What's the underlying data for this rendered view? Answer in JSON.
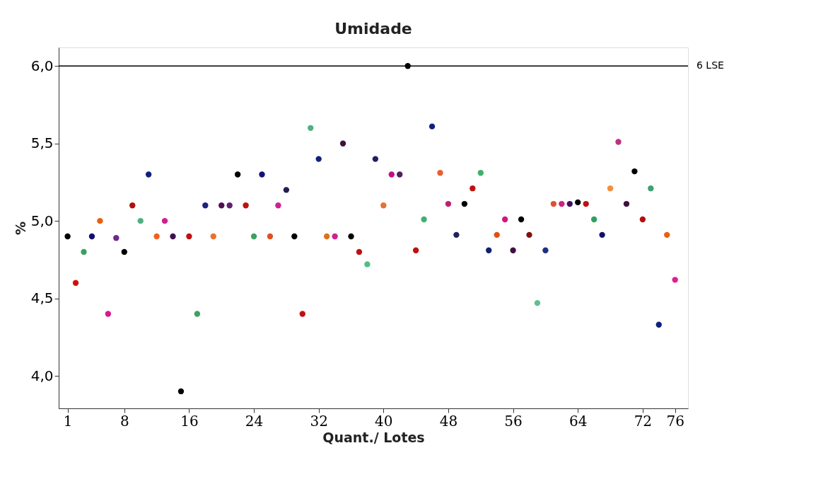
{
  "chart_data": {
    "type": "scatter",
    "title": "Umidade",
    "xlabel": "Quant./ Lotes",
    "ylabel": "%",
    "x": [
      1,
      2,
      3,
      4,
      5,
      6,
      7,
      8,
      9,
      10,
      11,
      12,
      13,
      14,
      15,
      16,
      17,
      18,
      19,
      20,
      21,
      22,
      23,
      24,
      25,
      26,
      27,
      28,
      29,
      30,
      31,
      32,
      33,
      34,
      35,
      36,
      37,
      38,
      39,
      40,
      41,
      42,
      43,
      44,
      45,
      46,
      47,
      48,
      49,
      50,
      51,
      52,
      53,
      54,
      55,
      56,
      57,
      58,
      59,
      60,
      61,
      62,
      63,
      64,
      65,
      66,
      67,
      68,
      69,
      70,
      71,
      72,
      73,
      74,
      75,
      76
    ],
    "series": [
      {
        "values": [
          4.9,
          4.6,
          4.8,
          4.9,
          5.0,
          4.4,
          4.89,
          4.8,
          5.1,
          5.0,
          5.3,
          4.9,
          5.0,
          4.9,
          3.9,
          4.9,
          4.4,
          5.1,
          4.9,
          5.1,
          5.1,
          5.3,
          5.1,
          4.9,
          5.3,
          4.9,
          5.1,
          5.2,
          4.9,
          4.4,
          5.6,
          5.4,
          4.9,
          4.9,
          5.5,
          4.9,
          4.8,
          4.72,
          5.4,
          5.1,
          5.3,
          5.3,
          6.0,
          4.81,
          5.01,
          5.61,
          5.31,
          5.11,
          4.91,
          5.11,
          5.21,
          5.31,
          4.81,
          4.91,
          5.01,
          4.81,
          5.01,
          4.91,
          4.47,
          4.81,
          5.11,
          5.11,
          5.11,
          5.12,
          5.11,
          5.01,
          4.91,
          5.21,
          5.51,
          5.11,
          5.32,
          5.01,
          5.21,
          4.33,
          4.91,
          4.62
        ],
        "colors": [
          "#000000",
          "#d01010",
          "#3aa060",
          "#101070",
          "#e86010",
          "#d81890",
          "#702890",
          "#000000",
          "#b01010",
          "#50b080",
          "#102080",
          "#f06020",
          "#d02090",
          "#401050",
          "#000000",
          "#c01010",
          "#40a060",
          "#202080",
          "#e87030",
          "#501050",
          "#602070",
          "#000000",
          "#c01010",
          "#40a060",
          "#101080",
          "#e05020",
          "#d02090",
          "#202050",
          "#000000",
          "#c01010",
          "#50b080",
          "#102080",
          "#e07020",
          "#d02090",
          "#401040",
          "#000000",
          "#c01010",
          "#50c080",
          "#202060",
          "#e87030",
          "#c01080",
          "#502060",
          "#000000",
          "#c01010",
          "#40b070",
          "#102080",
          "#e86030",
          "#c02070",
          "#202060",
          "#000000",
          "#c01010",
          "#40b070",
          "#102070",
          "#e05010",
          "#d01880",
          "#401040",
          "#000000",
          "#801010",
          "#60c090",
          "#203080",
          "#e05030",
          "#d02080",
          "#401060",
          "#000000",
          "#c01010",
          "#30a060",
          "#101070",
          "#f09040",
          "#c03080",
          "#401040",
          "#000000",
          "#b01010",
          "#40a070",
          "#102080",
          "#e86010",
          "#e02090"
        ]
      }
    ],
    "xlim": [
      -0.1,
      77.6
    ],
    "ylim": [
      3.79,
      6.12
    ],
    "xticks": [
      1,
      8,
      16,
      24,
      32,
      40,
      48,
      56,
      64,
      72,
      76
    ],
    "yticks": [
      {
        "value": 4.0,
        "label": "4,0"
      },
      {
        "value": 4.5,
        "label": "4,5"
      },
      {
        "value": 5.0,
        "label": "5,0"
      },
      {
        "value": 5.5,
        "label": "5,5"
      },
      {
        "value": 6.0,
        "label": "6,0"
      }
    ],
    "ref_lines": [
      {
        "axis": "y",
        "value": 6.0,
        "label": "6 LSE",
        "color": "#000000"
      }
    ],
    "grid": false,
    "marker": "circle"
  }
}
